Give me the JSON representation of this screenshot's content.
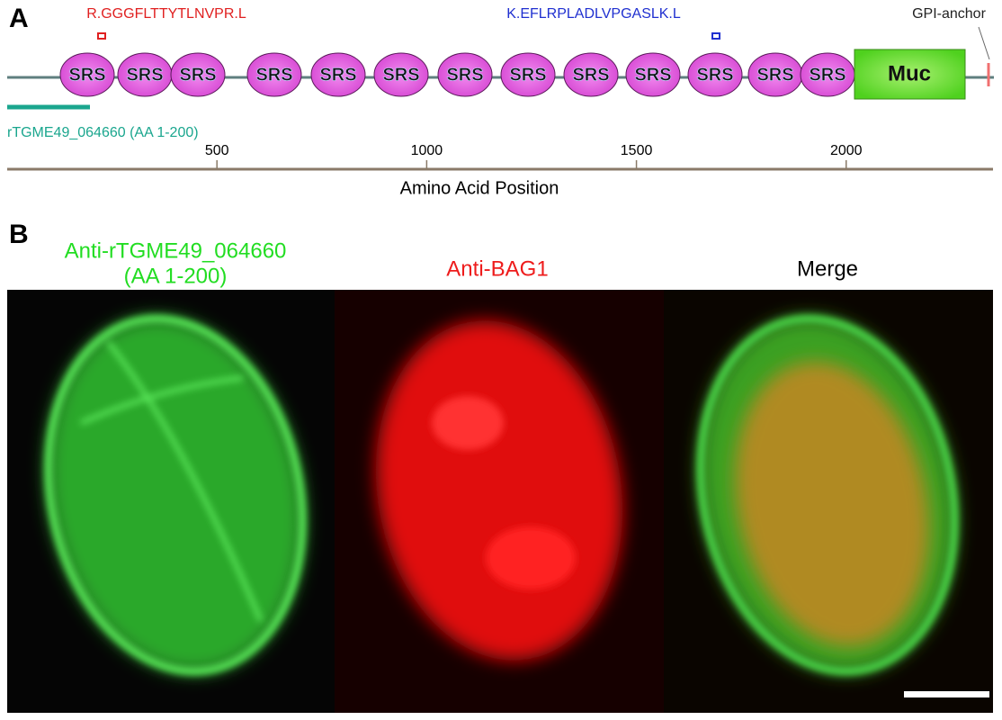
{
  "panel_a": {
    "label": "A",
    "peptides": [
      {
        "text": "R.GGGFLTTYTLNVPR.L",
        "color": "#e02020"
      },
      {
        "text": "K.EFLRPLADLVPGASLK.L",
        "color": "#2030d0"
      }
    ],
    "domains": [
      "SRS",
      "SRS",
      "SRS",
      "SRS",
      "SRS",
      "SRS",
      "SRS",
      "SRS",
      "SRS",
      "SRS",
      "SRS",
      "SRS",
      "SRS",
      "Muc"
    ],
    "anchor": "GPI-anchor",
    "construct": "rTGME49_064660 (AA 1-200)",
    "axis": {
      "label": "Amino Acid Position",
      "xlim": [
        0,
        2350
      ],
      "ticks": [
        500,
        1000,
        1500,
        2000
      ]
    }
  },
  "panel_b": {
    "label": "B",
    "titles": [
      {
        "lines": [
          "Anti-rTGME49_064660",
          "(AA 1-200)"
        ],
        "color": "#22dd22"
      },
      {
        "lines": [
          "Anti-BAG1"
        ],
        "color": "#ee1c1c"
      },
      {
        "lines": [
          "Merge"
        ],
        "color": "#000000"
      }
    ]
  }
}
